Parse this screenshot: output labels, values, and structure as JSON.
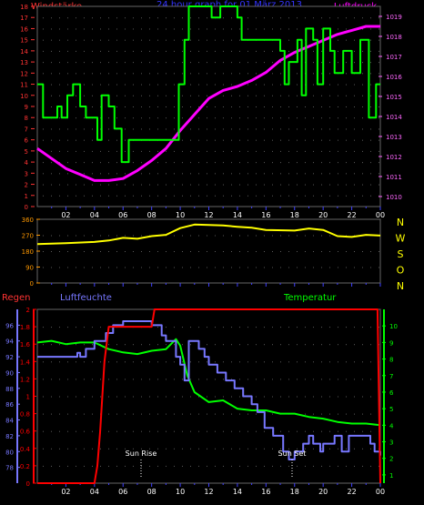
{
  "header": {
    "left": "Windstärke",
    "center": "24 hour graph for  01 März 2013",
    "right": "Luftdruck"
  },
  "colors": {
    "background": "#000000",
    "wind": "#00ff00",
    "pressure": "#ff00ff",
    "direction": "#ffff00",
    "rain": "#ff0000",
    "humidity": "#7777ff",
    "temperature": "#00ff00",
    "grid": "#5a5a5a",
    "time_ticks": "#4040ff",
    "wind_axis": "#ff3333",
    "pressure_axis": "#ff66ff",
    "direction_axis": "#ff9900"
  },
  "time_labels": [
    "02",
    "04",
    "06",
    "08",
    "10",
    "12",
    "14",
    "16",
    "18",
    "20",
    "22",
    "00"
  ],
  "compass": [
    "N",
    "W",
    "S",
    "O",
    "N"
  ],
  "bottom_labels": {
    "rain": "Regen",
    "humidity": "Luftfeuchte",
    "temperature": "Temperatur",
    "sun_rise": "Sun Rise",
    "sun_set": "Sun Set"
  },
  "chart_data": [
    {
      "type": "line",
      "title": "24 hour graph for  01 März 2013",
      "x_unit": "hour",
      "xlim": [
        0,
        24
      ],
      "series": [
        {
          "name": "Windstärke",
          "axis": "left",
          "ylim": [
            0,
            18
          ],
          "ticks": [
            "0",
            "1",
            "2",
            "3",
            "4",
            "5",
            "6",
            "7",
            "8",
            "9",
            "10",
            "11",
            "12",
            "13",
            "14",
            "15",
            "16",
            "17",
            "18"
          ],
          "step": true,
          "points": [
            [
              0,
              11
            ],
            [
              0.4,
              8
            ],
            [
              1.4,
              9
            ],
            [
              1.7,
              8
            ],
            [
              2.1,
              10
            ],
            [
              2.5,
              11
            ],
            [
              3,
              9
            ],
            [
              3.4,
              8
            ],
            [
              4.2,
              6
            ],
            [
              4.5,
              10
            ],
            [
              5,
              9
            ],
            [
              5.4,
              7
            ],
            [
              5.9,
              4
            ],
            [
              6.4,
              6
            ],
            [
              9.5,
              6
            ],
            [
              9.9,
              11
            ],
            [
              10.3,
              15
            ],
            [
              10.6,
              18
            ],
            [
              12.2,
              17
            ],
            [
              12.8,
              18
            ],
            [
              14,
              17
            ],
            [
              14.3,
              15
            ],
            [
              17,
              14
            ],
            [
              17.3,
              11
            ],
            [
              17.6,
              13
            ],
            [
              18.2,
              15
            ],
            [
              18.5,
              10
            ],
            [
              18.8,
              16
            ],
            [
              19.3,
              15
            ],
            [
              19.6,
              11
            ],
            [
              20,
              16
            ],
            [
              20.5,
              14
            ],
            [
              20.8,
              12
            ],
            [
              21.4,
              14
            ],
            [
              22,
              12
            ],
            [
              22.6,
              15
            ],
            [
              23.2,
              8
            ],
            [
              23.7,
              11
            ],
            [
              24,
              11
            ]
          ]
        },
        {
          "name": "Luftdruck",
          "axis": "right",
          "ylim": [
            1009.5,
            1019.5
          ],
          "ticks": [
            "1010",
            "1011",
            "1012",
            "1013",
            "1014",
            "1015",
            "1016",
            "1017",
            "1018",
            "1019"
          ],
          "points": [
            [
              0,
              1012.4
            ],
            [
              1,
              1011.9
            ],
            [
              2,
              1011.4
            ],
            [
              3,
              1011.1
            ],
            [
              4,
              1010.8
            ],
            [
              5,
              1010.8
            ],
            [
              6,
              1010.9
            ],
            [
              7,
              1011.3
            ],
            [
              8,
              1011.8
            ],
            [
              9,
              1012.4
            ],
            [
              10,
              1013.3
            ],
            [
              11,
              1014.1
            ],
            [
              12,
              1014.9
            ],
            [
              13,
              1015.3
            ],
            [
              14,
              1015.5
            ],
            [
              15,
              1015.8
            ],
            [
              16,
              1016.2
            ],
            [
              17,
              1016.8
            ],
            [
              18,
              1017.2
            ],
            [
              19,
              1017.5
            ],
            [
              20,
              1017.8
            ],
            [
              21,
              1018.1
            ],
            [
              22,
              1018.3
            ],
            [
              23,
              1018.5
            ],
            [
              24,
              1018.5
            ]
          ]
        }
      ]
    },
    {
      "type": "line",
      "xlim": [
        0,
        24
      ],
      "series": [
        {
          "name": "Windrichtung",
          "axis": "left",
          "ylim": [
            0,
            360
          ],
          "ticks": [
            "0",
            "90",
            "180",
            "270",
            "360"
          ],
          "points": [
            [
              0,
              220
            ],
            [
              2,
              225
            ],
            [
              4,
              232
            ],
            [
              5,
              240
            ],
            [
              6,
              255
            ],
            [
              7,
              250
            ],
            [
              8,
              265
            ],
            [
              9,
              272
            ],
            [
              10,
              310
            ],
            [
              11,
              330
            ],
            [
              13,
              325
            ],
            [
              14,
              318
            ],
            [
              15,
              312
            ],
            [
              16,
              300
            ],
            [
              18,
              296
            ],
            [
              19,
              308
            ],
            [
              20,
              300
            ],
            [
              21,
              265
            ],
            [
              22,
              260
            ],
            [
              23,
              272
            ],
            [
              24,
              268
            ]
          ]
        }
      ]
    },
    {
      "type": "line",
      "xlim": [
        0,
        24
      ],
      "series": [
        {
          "name": "Regen",
          "axis": "left-1",
          "ylim": [
            0,
            2
          ],
          "ticks": [
            "0",
            "0.2",
            "0.4",
            "0.6",
            "0.8",
            "1",
            "1.2",
            "1.4",
            "1.6",
            "1.8",
            "2"
          ],
          "points": [
            [
              0,
              0
            ],
            [
              4,
              0
            ],
            [
              4.2,
              0.2
            ],
            [
              4.4,
              0.6
            ],
            [
              4.7,
              1.4
            ],
            [
              5,
              1.8
            ],
            [
              8,
              1.8
            ],
            [
              8.2,
              2
            ],
            [
              23.8,
              2
            ],
            [
              24,
              0
            ]
          ]
        },
        {
          "name": "Luftfeuchte",
          "axis": "left-2",
          "ylim": [
            76,
            98
          ],
          "ticks": [
            "78",
            "80",
            "82",
            "84",
            "86",
            "88",
            "90",
            "92",
            "94",
            "96"
          ],
          "step": true,
          "points": [
            [
              0,
              92
            ],
            [
              2.8,
              92.5
            ],
            [
              3,
              92
            ],
            [
              3.4,
              93
            ],
            [
              4,
              94
            ],
            [
              4.8,
              95
            ],
            [
              5.3,
              96
            ],
            [
              6,
              96.5
            ],
            [
              8,
              96
            ],
            [
              8.7,
              94.7
            ],
            [
              9,
              94
            ],
            [
              9.7,
              92
            ],
            [
              10,
              91
            ],
            [
              10.3,
              89
            ],
            [
              10.6,
              94
            ],
            [
              11.3,
              93
            ],
            [
              11.7,
              92
            ],
            [
              12,
              91
            ],
            [
              12.6,
              90
            ],
            [
              13.2,
              89
            ],
            [
              13.8,
              88
            ],
            [
              14.4,
              87
            ],
            [
              15,
              86
            ],
            [
              15.4,
              85
            ],
            [
              15.9,
              83
            ],
            [
              16.5,
              82
            ],
            [
              17.2,
              80
            ],
            [
              17.6,
              79
            ],
            [
              18,
              80
            ],
            [
              18.6,
              81
            ],
            [
              19,
              82
            ],
            [
              19.3,
              81
            ],
            [
              19.8,
              80
            ],
            [
              20,
              81
            ],
            [
              20.8,
              82
            ],
            [
              21.3,
              80
            ],
            [
              21.8,
              82
            ],
            [
              23.3,
              81
            ],
            [
              23.6,
              80
            ],
            [
              24,
              79.5
            ]
          ]
        },
        {
          "name": "Temperatur",
          "axis": "right",
          "ylim": [
            0.5,
            11
          ],
          "ticks": [
            "1",
            "2",
            "3",
            "4",
            "5",
            "6",
            "7",
            "8",
            "9",
            "10"
          ],
          "points": [
            [
              0,
              9
            ],
            [
              1,
              9.1
            ],
            [
              2,
              8.9
            ],
            [
              3,
              9
            ],
            [
              4,
              9
            ],
            [
              5,
              8.6
            ],
            [
              6,
              8.4
            ],
            [
              7,
              8.3
            ],
            [
              8,
              8.5
            ],
            [
              9,
              8.6
            ],
            [
              9.7,
              9.2
            ],
            [
              10,
              8.8
            ],
            [
              10.5,
              7
            ],
            [
              11,
              6
            ],
            [
              12,
              5.4
            ],
            [
              13,
              5.5
            ],
            [
              14,
              5
            ],
            [
              15,
              4.9
            ],
            [
              16,
              4.9
            ],
            [
              17,
              4.7
            ],
            [
              18,
              4.7
            ],
            [
              19,
              4.5
            ],
            [
              20,
              4.4
            ],
            [
              21,
              4.2
            ],
            [
              22,
              4.1
            ],
            [
              23,
              4.1
            ],
            [
              24,
              4
            ]
          ]
        }
      ]
    }
  ]
}
